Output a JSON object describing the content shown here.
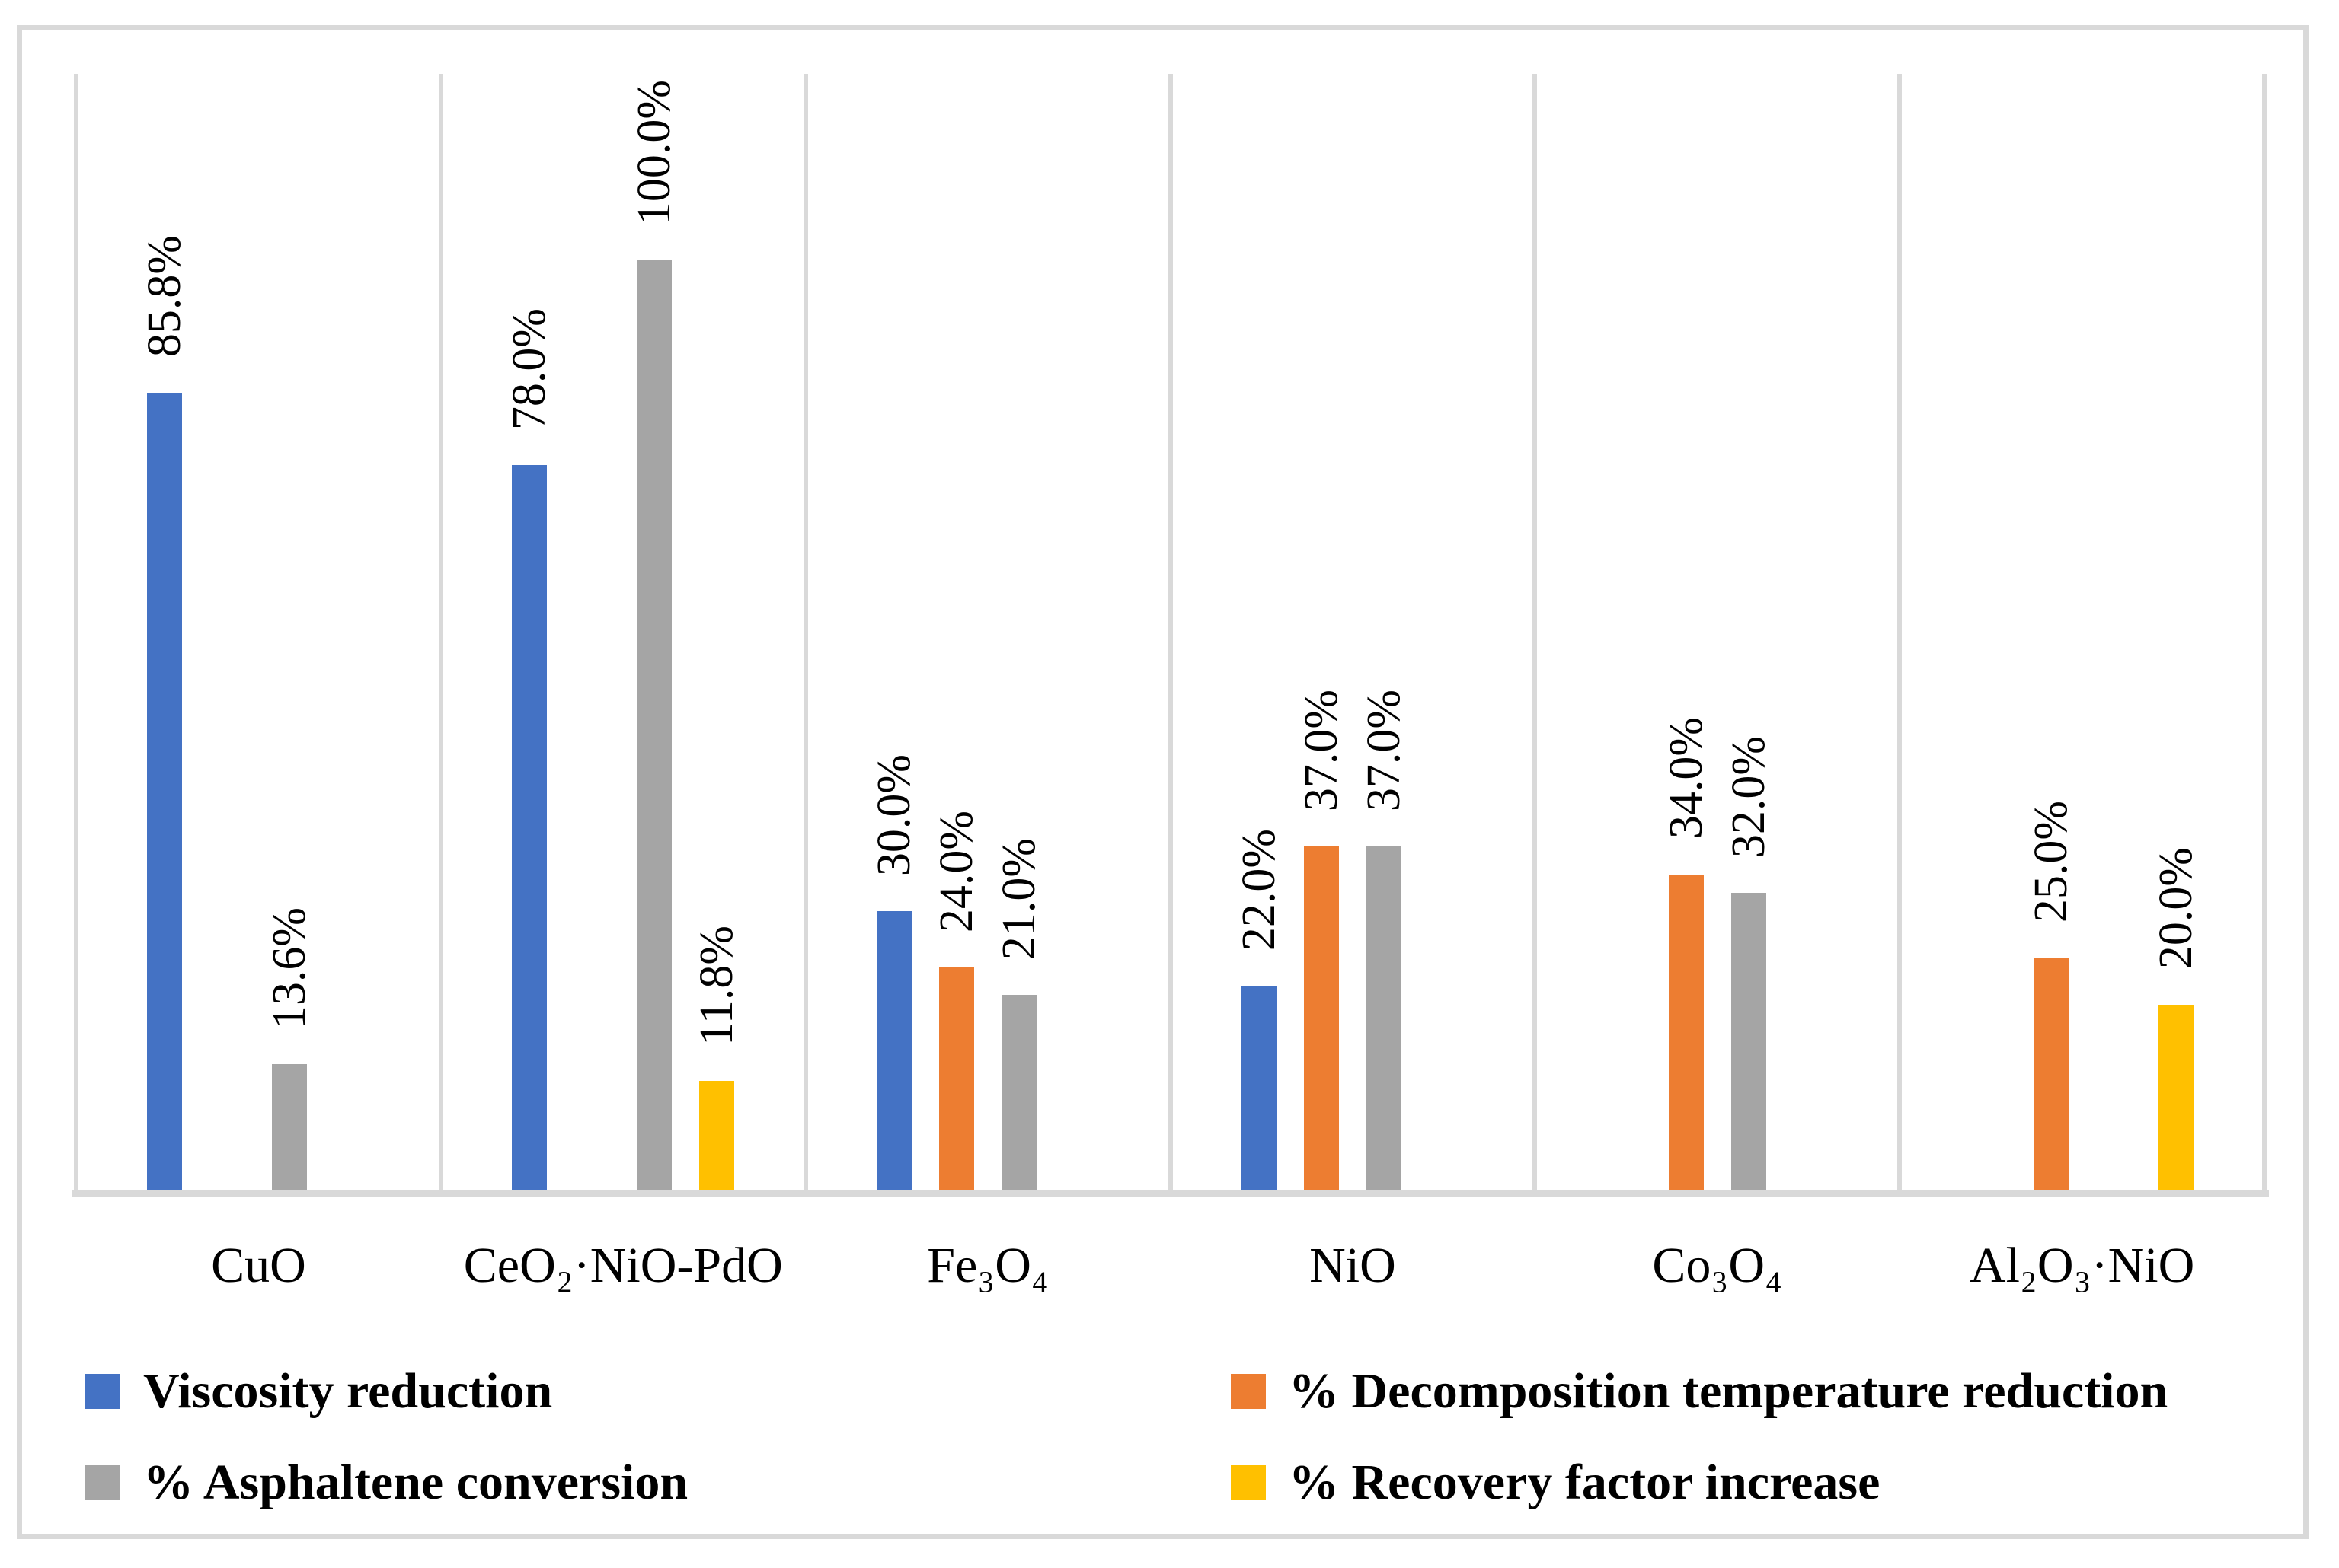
{
  "figure": {
    "background": "#FFFFFF",
    "frame_border_color": "#D9D9D9",
    "gridline_color": "#D9D9D9",
    "axis_line_color": "#D9D9D9",
    "text_color": "#000000"
  },
  "chart_data": {
    "type": "bar",
    "title": "",
    "xlabel": "",
    "ylabel": "",
    "categories": [
      "CuO",
      "CeO₂·NiO-PdO",
      "Fe₃O₄",
      "NiO",
      "Co₃O₄",
      "Al₂O₃·NiO"
    ],
    "series": [
      {
        "name": "Viscosity reduction",
        "color": "#4472C4",
        "values": [
          85.8,
          78.0,
          30.0,
          22.0,
          null,
          null
        ]
      },
      {
        "name": "% Decomposition temperature reduction",
        "color": "#ED7D31",
        "values": [
          null,
          null,
          24.0,
          37.0,
          34.0,
          25.0
        ]
      },
      {
        "name": "% Asphaltene conversion",
        "color": "#A5A5A5",
        "values": [
          13.6,
          100.0,
          21.0,
          37.0,
          32.0,
          null
        ]
      },
      {
        "name": "% Recovery factor increase",
        "color": "#FFC000",
        "values": [
          null,
          11.8,
          null,
          null,
          null,
          20.0
        ]
      }
    ],
    "data_labels": {
      "format": "{value:.1f}%",
      "rotation": 90,
      "examples": [
        "85.8%",
        "13.6%",
        "78.0%",
        "100.0%",
        "11.8%",
        "30.0%",
        "24.0%",
        "21.0%",
        "22.0%",
        "37.0%",
        "37.0%",
        "34.0%",
        "32.0%",
        "25.0%",
        "20.0%"
      ]
    },
    "ylim": [
      0,
      120
    ],
    "y_axis_visible": false,
    "grid": "vertical category separators only",
    "legend_position": "bottom-two-columns",
    "legend_order": [
      [
        "Viscosity reduction",
        "% Decomposition temperature reduction"
      ],
      [
        "% Asphaltene conversion",
        "% Recovery factor increase"
      ]
    ]
  }
}
